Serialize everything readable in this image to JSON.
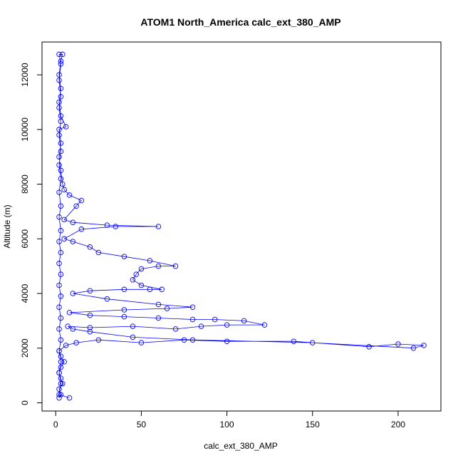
{
  "chart_data": {
    "type": "scatter",
    "title": "ATOM1 North_America calc_ext_380_AMP",
    "xlabel": "calc_ext_380_AMP",
    "ylabel": "Altitude (m)",
    "xlim": [
      -8,
      225
    ],
    "ylim": [
      -300,
      13200
    ],
    "xticks": [
      0,
      50,
      100,
      150,
      200
    ],
    "yticks": [
      0,
      2000,
      4000,
      6000,
      8000,
      10000,
      12000
    ],
    "marker": "open-circle",
    "connected": true,
    "color": "#0000ff",
    "series": [
      {
        "points": [
          [
            2,
            180
          ],
          [
            3,
            300
          ],
          [
            2,
            500
          ],
          [
            4,
            700
          ],
          [
            3,
            900
          ],
          [
            2,
            1100
          ],
          [
            3,
            1300
          ],
          [
            5,
            1500
          ],
          [
            3,
            1700
          ],
          [
            2,
            1900
          ],
          [
            6,
            2100
          ],
          [
            12,
            2200
          ],
          [
            25,
            2300
          ],
          [
            50,
            2200
          ],
          [
            75,
            2300
          ],
          [
            100,
            2250
          ],
          [
            139,
            2250
          ],
          [
            183,
            2050
          ],
          [
            200,
            2150
          ],
          [
            215,
            2100
          ],
          [
            209,
            2000
          ],
          [
            150,
            2200
          ],
          [
            80,
            2300
          ],
          [
            45,
            2400
          ],
          [
            20,
            2600
          ],
          [
            10,
            2700
          ],
          [
            7,
            2800
          ],
          [
            20,
            2750
          ],
          [
            45,
            2800
          ],
          [
            70,
            2700
          ],
          [
            85,
            2800
          ],
          [
            100,
            2850
          ],
          [
            122,
            2850
          ],
          [
            110,
            3000
          ],
          [
            93,
            3050
          ],
          [
            80,
            3050
          ],
          [
            60,
            3100
          ],
          [
            40,
            3150
          ],
          [
            20,
            3200
          ],
          [
            8,
            3300
          ],
          [
            40,
            3400
          ],
          [
            65,
            3450
          ],
          [
            80,
            3500
          ],
          [
            60,
            3600
          ],
          [
            30,
            3800
          ],
          [
            10,
            4000
          ],
          [
            20,
            4100
          ],
          [
            40,
            4150
          ],
          [
            55,
            4150
          ],
          [
            62,
            4150
          ],
          [
            50,
            4300
          ],
          [
            45,
            4500
          ],
          [
            47,
            4700
          ],
          [
            50,
            4900
          ],
          [
            60,
            5000
          ],
          [
            70,
            5000
          ],
          [
            55,
            5200
          ],
          [
            40,
            5350
          ],
          [
            25,
            5500
          ],
          [
            20,
            5700
          ],
          [
            10,
            5900
          ],
          [
            5,
            6000
          ],
          [
            15,
            6350
          ],
          [
            35,
            6450
          ],
          [
            60,
            6450
          ],
          [
            30,
            6500
          ],
          [
            10,
            6600
          ],
          [
            5,
            6700
          ],
          [
            12,
            7200
          ],
          [
            15,
            7400
          ],
          [
            8,
            7600
          ],
          [
            5,
            7800
          ],
          [
            4,
            8000
          ],
          [
            3,
            8500
          ],
          [
            2,
            9000
          ],
          [
            3,
            9500
          ],
          [
            2,
            10000
          ],
          [
            6,
            10100
          ],
          [
            3,
            10500
          ],
          [
            2,
            11000
          ],
          [
            3,
            11500
          ],
          [
            2,
            12000
          ],
          [
            3,
            12500
          ],
          [
            4,
            12750
          ],
          [
            2,
            12750
          ],
          [
            3,
            12400
          ],
          [
            2,
            11800
          ],
          [
            3,
            11200
          ],
          [
            2,
            10800
          ],
          [
            3,
            10300
          ],
          [
            2,
            9800
          ],
          [
            3,
            9200
          ],
          [
            2,
            8700
          ],
          [
            3,
            8200
          ],
          [
            2,
            7700
          ],
          [
            3,
            7200
          ],
          [
            2,
            6800
          ],
          [
            3,
            6300
          ],
          [
            2,
            5900
          ],
          [
            3,
            5500
          ],
          [
            2,
            5100
          ],
          [
            3,
            4700
          ],
          [
            2,
            4300
          ],
          [
            3,
            3900
          ],
          [
            2,
            3500
          ],
          [
            3,
            3100
          ],
          [
            2,
            2700
          ],
          [
            3,
            2300
          ],
          [
            2,
            1900
          ],
          [
            3,
            1500
          ],
          [
            2,
            1100
          ],
          [
            3,
            700
          ],
          [
            2,
            300
          ],
          [
            8,
            180
          ]
        ]
      }
    ]
  }
}
